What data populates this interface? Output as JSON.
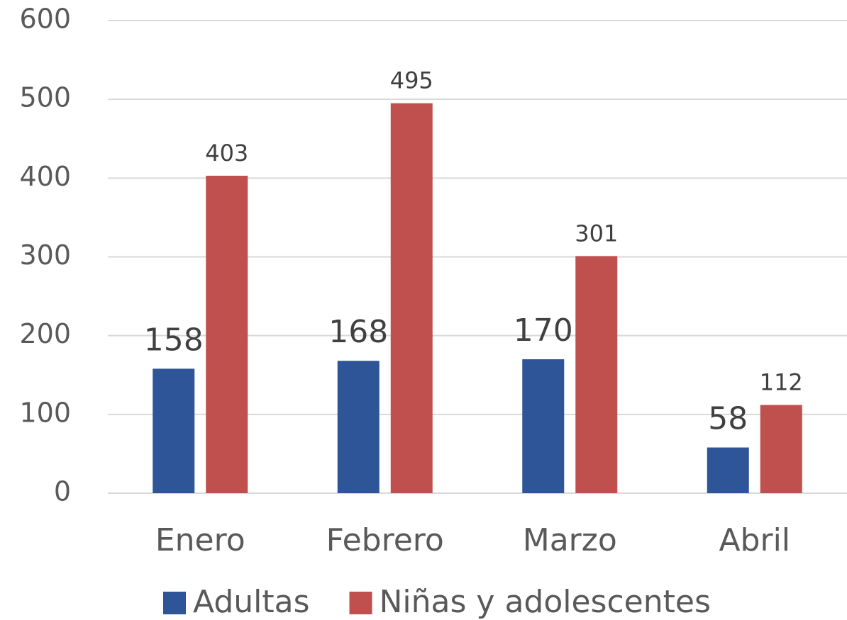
{
  "chart_data": {
    "type": "bar",
    "categories": [
      "Enero",
      "Febrero",
      "Marzo",
      "Abril"
    ],
    "series": [
      {
        "name": "Adultas",
        "color": "#2e5597",
        "values": [
          158,
          168,
          170,
          58
        ]
      },
      {
        "name": "Niñas y adolescentes",
        "color": "#c0504d",
        "values": [
          403,
          495,
          301,
          112
        ]
      }
    ],
    "ylim": [
      0,
      600
    ],
    "yticks": [
      0,
      100,
      200,
      300,
      400,
      500,
      600
    ],
    "grid": true,
    "legend": "bottom"
  }
}
